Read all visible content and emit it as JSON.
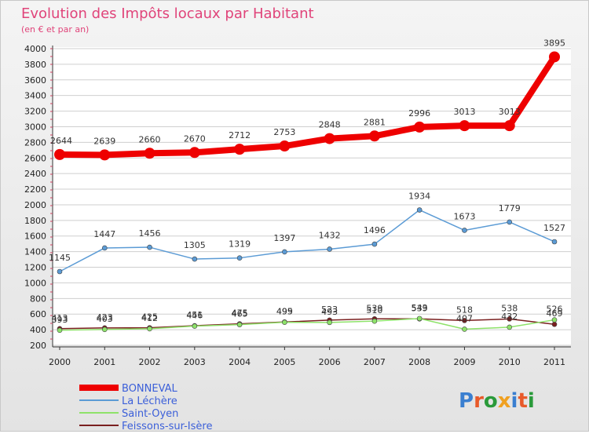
{
  "title": "Evolution des Impôts locaux par Habitant",
  "subtitle": "(en € et par an)",
  "brand": "Proxiti",
  "chart_data": {
    "type": "line",
    "x": [
      "2000",
      "2001",
      "2002",
      "2003",
      "2004",
      "2005",
      "2006",
      "2007",
      "2008",
      "2009",
      "2010",
      "2011"
    ],
    "ylim": [
      200,
      4000
    ],
    "yticks": [
      200,
      400,
      600,
      800,
      1000,
      1200,
      1400,
      1600,
      1800,
      2000,
      2200,
      2400,
      2600,
      2800,
      3000,
      3200,
      3400,
      3600,
      3800,
      4000
    ],
    "grid": "horizontal",
    "legend_position": "bottom-left",
    "series": [
      {
        "name": "BONNEVAL",
        "color": "#ee0000",
        "values": [
          2644,
          2639,
          2660,
          2670,
          2712,
          2753,
          2848,
          2881,
          2996,
          3013,
          3013,
          3895
        ]
      },
      {
        "name": "La Léchère",
        "color": "#5b9bd5",
        "values": [
          1145,
          1447,
          1456,
          1305,
          1319,
          1397,
          1432,
          1496,
          1934,
          1673,
          1779,
          1527
        ]
      },
      {
        "name": "Saint-Oyen",
        "color": "#8ee26a",
        "values": [
          393,
          403,
          412,
          446,
          465,
          495,
          493,
          510,
          543,
          407,
          432,
          526
        ]
      },
      {
        "name": "Feissons-sur-Isère",
        "color": "#7a1f1f",
        "values": [
          413,
          423,
          425,
          451,
          475,
          499,
          523,
          539,
          539,
          518,
          538,
          469
        ]
      }
    ]
  }
}
